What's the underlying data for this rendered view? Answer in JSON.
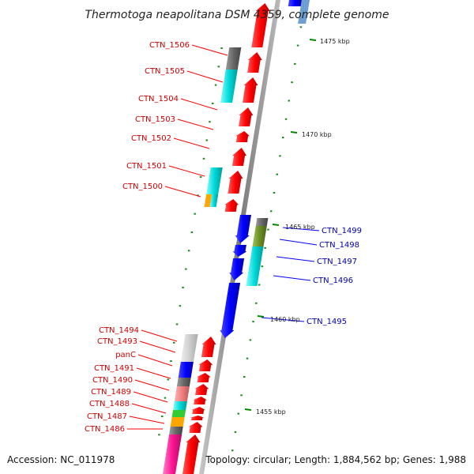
{
  "title": "Thermotoga neapolitana DSM 4359, complete genome",
  "accession": "Accession: NC_011978",
  "topology": "Topology: circular; Length: 1,884,562 bp; Genes: 1,988",
  "colors": {
    "forward_strand": "#ff0000",
    "reverse_strand": "#0000ff",
    "label_forward": "#cc0000",
    "label_reverse": "#0000aa",
    "backbone": "#888888",
    "tick": "#008800"
  },
  "kbp_ticks": [
    {
      "label": "1475 kbp"
    },
    {
      "label": "1470 kbp"
    },
    {
      "label": "1465 kbp"
    },
    {
      "label": "1460 kbp"
    },
    {
      "label": "1455 kbp"
    }
  ],
  "gene_labels_forward": [
    "CTN_1506",
    "CTN_1505",
    "CTN_1504",
    "CTN_1503",
    "CTN_1502",
    "CTN_1501",
    "CTN_1500",
    "CTN_1494",
    "CTN_1493",
    "panC",
    "CTN_1491",
    "CTN_1490",
    "CTN_1489",
    "CTN_1488",
    "CTN_1487",
    "CTN_1486"
  ],
  "gene_labels_reverse": [
    "CTN_1499",
    "CTN_1498",
    "CTN_1497",
    "CTN_1496",
    "CTN_1495"
  ]
}
